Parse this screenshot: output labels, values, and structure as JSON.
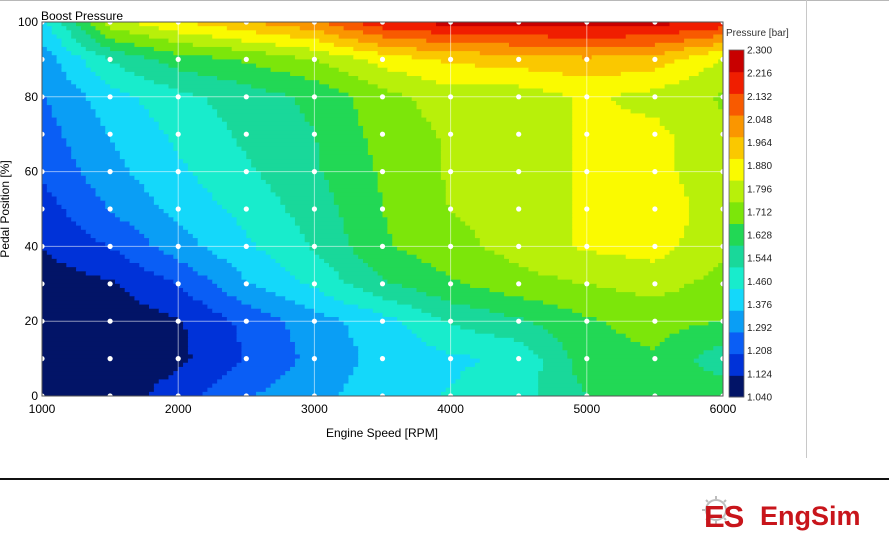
{
  "chart_data": {
    "type": "heatmap",
    "title": "Boost Pressure",
    "xlabel": "Engine Speed [RPM]",
    "ylabel": "Pedal Position [%]",
    "colorbar_label": "Pressure [bar]",
    "xlim": [
      1000,
      6000
    ],
    "ylim": [
      0,
      100
    ],
    "x_ticks": [
      "1000",
      "2000",
      "3000",
      "4000",
      "5000",
      "6000"
    ],
    "y_ticks": [
      "0",
      "20",
      "40",
      "60",
      "80",
      "100"
    ],
    "grid": true,
    "x": [
      1000,
      1500,
      2000,
      2500,
      3000,
      3500,
      4000,
      4500,
      5000,
      5500,
      6000
    ],
    "y": [
      0,
      10,
      20,
      30,
      40,
      50,
      60,
      70,
      80,
      90,
      100
    ],
    "z": [
      [
        1.04,
        1.07,
        1.16,
        1.27,
        1.33,
        1.4,
        1.44,
        1.48,
        1.59,
        1.62,
        1.65
      ],
      [
        1.04,
        1.06,
        1.1,
        1.2,
        1.3,
        1.38,
        1.42,
        1.45,
        1.64,
        1.66,
        1.54
      ],
      [
        1.05,
        1.07,
        1.11,
        1.22,
        1.32,
        1.4,
        1.52,
        1.58,
        1.66,
        1.7,
        1.67
      ],
      [
        1.08,
        1.11,
        1.2,
        1.35,
        1.45,
        1.58,
        1.66,
        1.72,
        1.75,
        1.78,
        1.72
      ],
      [
        1.12,
        1.2,
        1.32,
        1.42,
        1.52,
        1.66,
        1.72,
        1.78,
        1.84,
        1.86,
        1.77
      ],
      [
        1.16,
        1.28,
        1.38,
        1.46,
        1.55,
        1.67,
        1.75,
        1.79,
        1.84,
        1.88,
        1.78
      ],
      [
        1.21,
        1.33,
        1.42,
        1.5,
        1.58,
        1.68,
        1.76,
        1.78,
        1.84,
        1.86,
        1.76
      ],
      [
        1.24,
        1.36,
        1.45,
        1.53,
        1.59,
        1.7,
        1.76,
        1.77,
        1.84,
        1.85,
        1.76
      ],
      [
        1.27,
        1.4,
        1.49,
        1.55,
        1.61,
        1.72,
        1.79,
        1.78,
        1.84,
        1.8,
        1.74
      ],
      [
        1.31,
        1.52,
        1.63,
        1.68,
        1.75,
        1.86,
        1.92,
        1.95,
        1.97,
        1.95,
        1.82
      ],
      [
        1.4,
        1.8,
        1.9,
        1.98,
        2.05,
        2.2,
        2.25,
        2.25,
        2.27,
        2.25,
        2.2
      ]
    ],
    "colorbar_ticks": [
      "1.040",
      "1.124",
      "1.208",
      "1.292",
      "1.376",
      "1.460",
      "1.544",
      "1.628",
      "1.712",
      "1.796",
      "1.880",
      "1.964",
      "2.048",
      "2.132",
      "2.216",
      "2.300"
    ],
    "colorbar_colors": [
      "#021467",
      "#0032d8",
      "#0a5ef5",
      "#0a9ef5",
      "#14d8fa",
      "#18eccc",
      "#19d89a",
      "#22d855",
      "#7ce60a",
      "#b8f00a",
      "#fafa00",
      "#fac800",
      "#fa9600",
      "#f85a00",
      "#f01e00",
      "#c80000"
    ],
    "marker_color": "#ffffff"
  },
  "logo": {
    "letters_colored": "ES",
    "text": "EngSim",
    "color": "#c8151b"
  }
}
